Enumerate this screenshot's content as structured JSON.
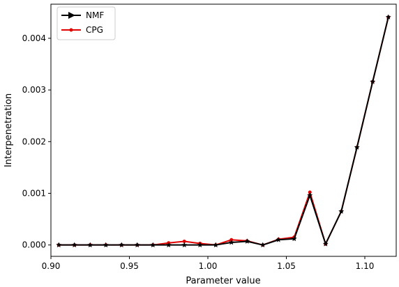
{
  "chart_data": {
    "type": "line",
    "xlabel": "Parameter value",
    "ylabel": "Interpenetration",
    "xlim": [
      0.9,
      1.12
    ],
    "ylim": [
      -0.00022,
      0.00466
    ],
    "xticks": [
      0.9,
      0.95,
      1.0,
      1.05,
      1.1
    ],
    "xtick_labels": [
      "0.90",
      "0.95",
      "1.00",
      "1.05",
      "1.10"
    ],
    "yticks": [
      0.0,
      0.001,
      0.002,
      0.003,
      0.004
    ],
    "ytick_labels": [
      "0.000",
      "0.001",
      "0.002",
      "0.003",
      "0.004"
    ],
    "grid": false,
    "legend_position": "top-left",
    "x": [
      0.905,
      0.915,
      0.925,
      0.935,
      0.945,
      0.955,
      0.965,
      0.975,
      0.985,
      0.995,
      1.005,
      1.015,
      1.025,
      1.035,
      1.045,
      1.055,
      1.065,
      1.075,
      1.085,
      1.095,
      1.105,
      1.115
    ],
    "series": [
      {
        "name": "NMF",
        "color": "#000000",
        "marker": "triangle-right",
        "values": [
          0.0,
          0.0,
          0.0,
          0.0,
          0.0,
          0.0,
          0.0,
          0.0,
          0.0,
          0.0,
          0.0,
          5e-05,
          7e-05,
          0.0,
          0.0001,
          0.00012,
          0.00096,
          2e-05,
          0.00065,
          0.00189,
          0.00316,
          0.00441
        ]
      },
      {
        "name": "CPG",
        "color": "#e00000",
        "marker": "dot",
        "values": [
          0.0,
          0.0,
          0.0,
          0.0,
          0.0,
          0.0,
          0.0,
          4e-05,
          7e-05,
          3e-05,
          0.0,
          0.0001,
          8e-05,
          0.0,
          0.00011,
          0.00015,
          0.00102,
          2e-05,
          0.00065,
          0.00189,
          0.00316,
          0.00441
        ]
      }
    ]
  }
}
